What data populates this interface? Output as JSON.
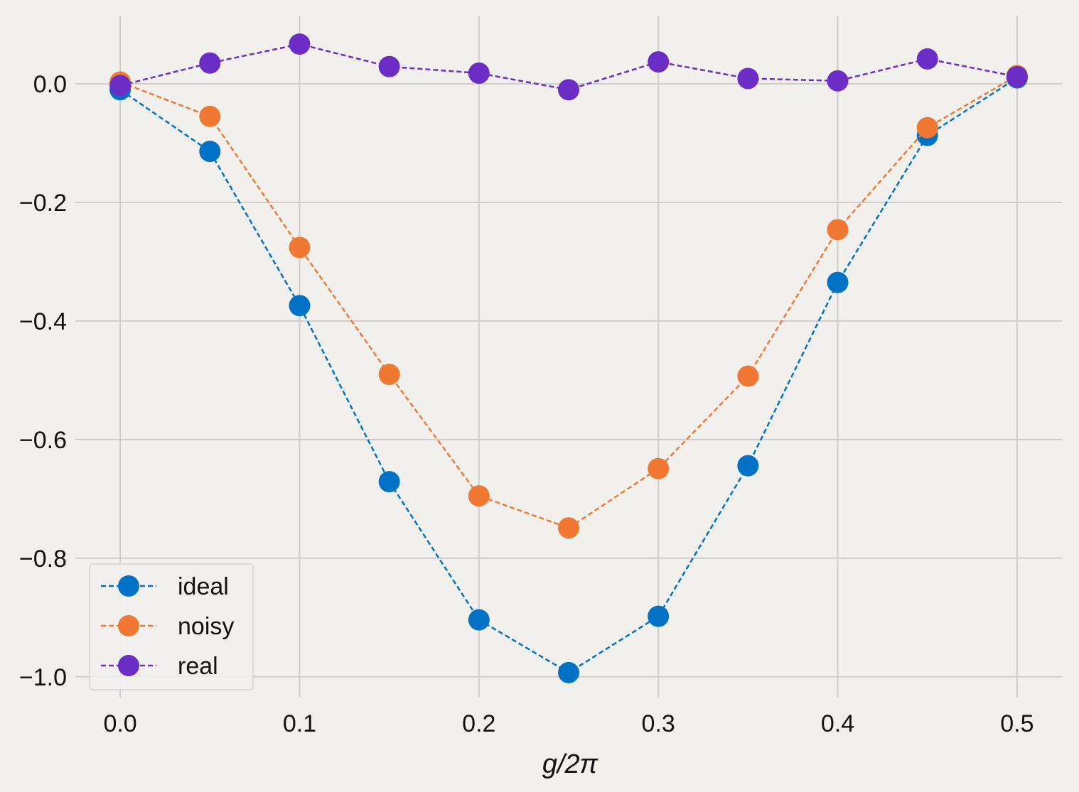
{
  "chart_data": {
    "type": "line",
    "xlabel": "g/2π",
    "ylabel": "",
    "x": [
      0.0,
      0.05,
      0.1,
      0.15,
      0.2,
      0.25,
      0.3,
      0.35,
      0.4,
      0.45,
      0.5
    ],
    "xlim": [
      -0.025,
      0.525
    ],
    "ylim": [
      -1.035,
      0.115
    ],
    "x_ticks": [
      0.0,
      0.1,
      0.2,
      0.3,
      0.4,
      0.5
    ],
    "x_tick_labels": [
      "0.0",
      "0.1",
      "0.2",
      "0.3",
      "0.4",
      "0.5"
    ],
    "y_ticks": [
      0.0,
      -0.2,
      -0.4,
      -0.6,
      -0.8,
      -1.0
    ],
    "y_tick_labels": [
      "0.0",
      "−0.2",
      "−0.4",
      "−0.6",
      "−0.8",
      "−1.0"
    ],
    "grid": true,
    "legend_position": "lower-left",
    "line_style": "dashed",
    "marker": "circle",
    "series": [
      {
        "name": "ideal",
        "color": "#0072c6",
        "values": [
          -0.01,
          -0.114,
          -0.374,
          -0.671,
          -0.904,
          -0.993,
          -0.898,
          -0.644,
          -0.335,
          -0.087,
          0.01
        ]
      },
      {
        "name": "noisy",
        "color": "#f07833",
        "values": [
          0.003,
          -0.055,
          -0.276,
          -0.49,
          -0.695,
          -0.749,
          -0.649,
          -0.493,
          -0.246,
          -0.074,
          0.014
        ]
      },
      {
        "name": "real",
        "color": "#6c2dc7",
        "values": [
          -0.003,
          0.035,
          0.067,
          0.029,
          0.018,
          -0.01,
          0.037,
          0.009,
          0.005,
          0.042,
          0.012
        ]
      }
    ]
  }
}
